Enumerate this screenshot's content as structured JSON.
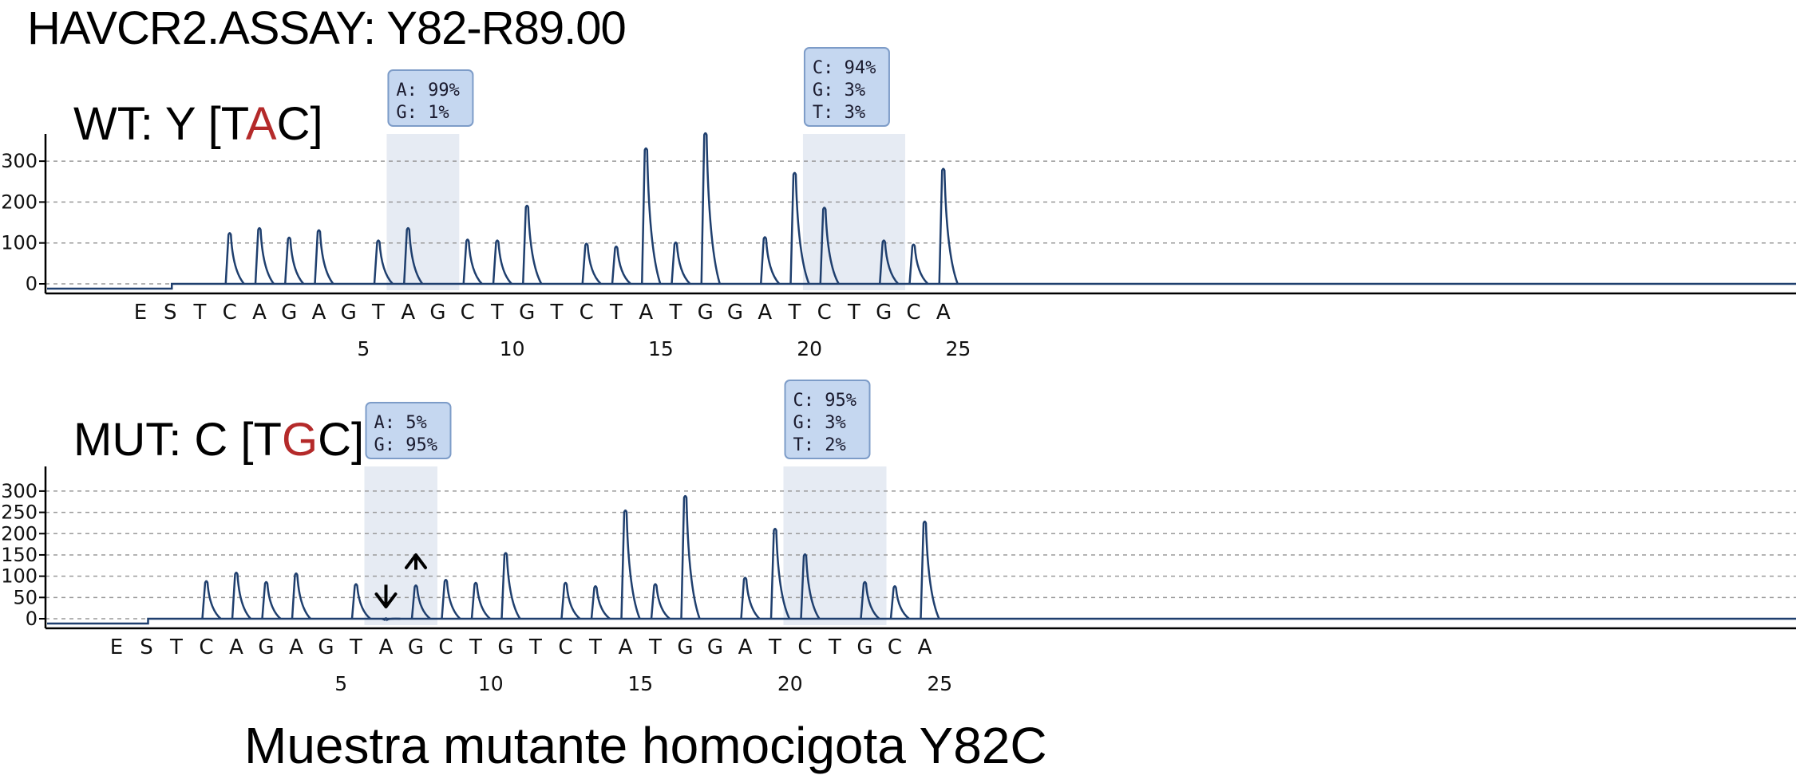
{
  "title": "HAVCR2.ASSAY: Y82-R89.00",
  "caption": "Muestra mutante homocigota Y82C",
  "colors": {
    "trace": "#1f3f6e",
    "highlight": "#e6ebf3",
    "box_fill": "#c5d7f0",
    "box_border": "#7d9cc8",
    "red": "#b42a2a"
  },
  "chart_data": [
    {
      "type": "line",
      "panel_title": {
        "prefix": "WT: Y [T",
        "highlight": "A",
        "suffix": "C]"
      },
      "ylim": [
        0,
        350
      ],
      "yticks": [
        0,
        100,
        200,
        300
      ],
      "grid": "dashed-horizontal",
      "bases": [
        "E",
        "S",
        "T",
        "C",
        "A",
        "G",
        "A",
        "G",
        "T",
        "A",
        "G",
        "C",
        "T",
        "G",
        "T",
        "C",
        "T",
        "A",
        "T",
        "G",
        "G",
        "A",
        "T",
        "C",
        "T",
        "G",
        "C",
        "A"
      ],
      "position_labels": [
        {
          "after_base": 7,
          "label": "5"
        },
        {
          "after_base": 12,
          "label": "10"
        },
        {
          "after_base": 17,
          "label": "15"
        },
        {
          "after_base": 22,
          "label": "20"
        },
        {
          "after_base": 27,
          "label": "25"
        }
      ],
      "peaks": [
        {
          "base_index": 3,
          "value": 128
        },
        {
          "base_index": 4,
          "value": 140
        },
        {
          "base_index": 5,
          "value": 117
        },
        {
          "base_index": 6,
          "value": 135
        },
        {
          "base_index": 8,
          "value": 110
        },
        {
          "base_index": 9,
          "value": 140
        },
        {
          "base_index": 11,
          "value": 112
        },
        {
          "base_index": 12,
          "value": 110
        },
        {
          "base_index": 13,
          "value": 195
        },
        {
          "base_index": 15,
          "value": 102
        },
        {
          "base_index": 16,
          "value": 95
        },
        {
          "base_index": 17,
          "value": 335
        },
        {
          "base_index": 18,
          "value": 105
        },
        {
          "base_index": 19,
          "value": 372
        },
        {
          "base_index": 21,
          "value": 118
        },
        {
          "base_index": 22,
          "value": 275
        },
        {
          "base_index": 23,
          "value": 190
        },
        {
          "base_index": 25,
          "value": 110
        },
        {
          "base_index": 26,
          "value": 100
        },
        {
          "base_index": 27,
          "value": 285
        }
      ],
      "highlights": [
        {
          "from_base": 9,
          "to_base": 10,
          "annotation": [
            "A: 99%",
            "G: 1%"
          ]
        },
        {
          "from_base": 23,
          "to_base": 25,
          "annotation": [
            "C: 94%",
            "G: 3%",
            "T: 3%"
          ]
        }
      ],
      "arrows": []
    },
    {
      "type": "line",
      "panel_title": {
        "prefix": "MUT: C [T",
        "highlight": "G",
        "suffix": "C]"
      },
      "ylim": [
        0,
        340
      ],
      "yticks": [
        0,
        50,
        100,
        150,
        200,
        250,
        300
      ],
      "grid": "dashed-horizontal",
      "bases": [
        "E",
        "S",
        "T",
        "C",
        "A",
        "G",
        "A",
        "G",
        "T",
        "A",
        "G",
        "C",
        "T",
        "G",
        "T",
        "C",
        "T",
        "A",
        "T",
        "G",
        "G",
        "A",
        "T",
        "C",
        "T",
        "G",
        "C",
        "A"
      ],
      "position_labels": [
        {
          "after_base": 7,
          "label": "5"
        },
        {
          "after_base": 12,
          "label": "10"
        },
        {
          "after_base": 17,
          "label": "15"
        },
        {
          "after_base": 22,
          "label": "20"
        },
        {
          "after_base": 27,
          "label": "25"
        }
      ],
      "peaks": [
        {
          "base_index": 3,
          "value": 92
        },
        {
          "base_index": 4,
          "value": 112
        },
        {
          "base_index": 5,
          "value": 90
        },
        {
          "base_index": 6,
          "value": 110
        },
        {
          "base_index": 8,
          "value": 85
        },
        {
          "base_index": 9,
          "value": 5
        },
        {
          "base_index": 10,
          "value": 82
        },
        {
          "base_index": 11,
          "value": 95
        },
        {
          "base_index": 12,
          "value": 88
        },
        {
          "base_index": 13,
          "value": 158
        },
        {
          "base_index": 15,
          "value": 88
        },
        {
          "base_index": 16,
          "value": 80
        },
        {
          "base_index": 17,
          "value": 258
        },
        {
          "base_index": 18,
          "value": 85
        },
        {
          "base_index": 19,
          "value": 292
        },
        {
          "base_index": 21,
          "value": 100
        },
        {
          "base_index": 22,
          "value": 215
        },
        {
          "base_index": 23,
          "value": 155
        },
        {
          "base_index": 25,
          "value": 90
        },
        {
          "base_index": 26,
          "value": 80
        },
        {
          "base_index": 27,
          "value": 232
        }
      ],
      "highlights": [
        {
          "from_base": 9,
          "to_base": 10,
          "annotation": [
            "A: 5%",
            "G: 95%"
          ]
        },
        {
          "from_base": 23,
          "to_base": 25,
          "annotation": [
            "C: 95%",
            "G: 3%",
            "T: 2%"
          ]
        }
      ],
      "arrows": [
        {
          "base_index": 9,
          "direction": "down"
        },
        {
          "base_index": 10,
          "direction": "up"
        }
      ]
    }
  ]
}
